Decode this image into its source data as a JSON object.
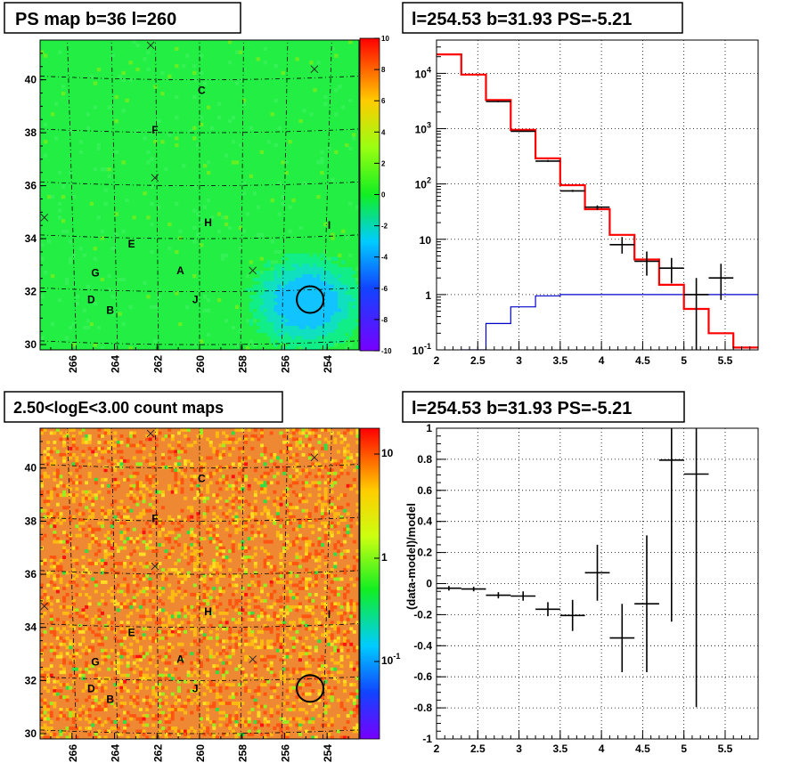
{
  "titles": {
    "tl": "PS map b=36 l=260",
    "tr": "l=254.53 b=31.93 PS=-5.21",
    "bl": "2.50<logE<3.00 count maps",
    "br": "l=254.53 b=31.93 PS=-5.21"
  },
  "source_letters": [
    "A",
    "B",
    "C",
    "D",
    "E",
    "F",
    "G",
    "H",
    "I",
    "J"
  ],
  "colors": {
    "model_red": "#ff0000",
    "data_black": "#000000",
    "baseline_blue": "#0000cc",
    "ps_background": "#22ee44",
    "count_background": "#ee8833"
  },
  "chart_data": [
    {
      "id": "ps_map",
      "type": "heatmap",
      "title": "PS map b=36 l=260",
      "x_ticks": [
        "266",
        "264",
        "262",
        "260",
        "258",
        "256",
        "254"
      ],
      "y_ticks": [
        "30",
        "32",
        "34",
        "36",
        "38",
        "40"
      ],
      "xlim": [
        267.5,
        252.5
      ],
      "ylim": [
        29.8,
        41.5
      ],
      "colorbar_ticks": [
        "10",
        "8",
        "6",
        "4",
        "2",
        "0",
        "-2",
        "-4",
        "-6",
        "-8",
        "-10"
      ],
      "colorbar_range": [
        -10,
        10
      ],
      "sources": [
        {
          "label": "A",
          "l": 260.9,
          "b": 32.8
        },
        {
          "label": "B",
          "l": 264.2,
          "b": 31.3
        },
        {
          "label": "C",
          "l": 259.9,
          "b": 39.6
        },
        {
          "label": "D",
          "l": 265.1,
          "b": 31.7
        },
        {
          "label": "E",
          "l": 263.2,
          "b": 33.8
        },
        {
          "label": "F",
          "l": 262.1,
          "b": 38.1
        },
        {
          "label": "G",
          "l": 264.9,
          "b": 32.7
        },
        {
          "label": "H",
          "l": 259.6,
          "b": 34.6
        },
        {
          "label": "I",
          "l": 253.9,
          "b": 34.5
        },
        {
          "label": "J",
          "l": 260.2,
          "b": 31.7
        }
      ],
      "crosses": [
        {
          "l": 262.3,
          "b": 41.3
        },
        {
          "l": 254.6,
          "b": 40.4
        },
        {
          "l": 262.1,
          "b": 36.3
        },
        {
          "l": 267.3,
          "b": 34.8
        },
        {
          "l": 257.5,
          "b": 32.8
        }
      ],
      "circle": {
        "l": 254.8,
        "b": 31.7
      }
    },
    {
      "id": "spectrum",
      "type": "line",
      "title": "l=254.53 b=31.93 PS=-5.21",
      "log_y": true,
      "xlim": [
        2,
        5.9
      ],
      "ylim": [
        0.1,
        40000
      ],
      "x_ticks": [
        "2",
        "2.5",
        "3",
        "3.5",
        "4",
        "4.5",
        "5",
        "5.5"
      ],
      "y_ticks": [
        "10^-1",
        "1",
        "10",
        "10^2",
        "10^3",
        "10^4"
      ],
      "grid": true,
      "series": [
        {
          "style": "model_step",
          "edges": [
            2.0,
            2.3,
            2.6,
            2.9,
            3.2,
            3.5,
            3.8,
            4.1,
            4.4,
            4.7,
            5.0,
            5.3,
            5.6,
            5.9
          ],
          "values": [
            22000,
            9500,
            3300,
            950,
            290,
            95,
            35,
            12,
            4.3,
            1.5,
            0.55,
            0.2,
            0.11
          ]
        },
        {
          "style": "baseline_step",
          "edges": [
            2.3,
            2.6,
            2.9,
            3.2,
            3.5,
            5.9
          ],
          "values": [
            0.1,
            0.3,
            0.6,
            0.95,
            1.0
          ]
        },
        {
          "style": "data_points",
          "x": [
            2.6,
            2.9,
            3.2,
            3.5,
            3.8,
            4.1,
            4.4,
            4.7,
            5.0,
            5.3
          ],
          "y": [
            3100,
            900,
            260,
            75,
            38,
            8,
            4,
            3,
            1,
            2
          ],
          "ylo": [
            3000,
            880,
            250,
            72,
            34,
            5.5,
            2.2,
            1.6,
            0.1,
            0.8
          ],
          "yhi": [
            3200,
            920,
            270,
            78,
            41,
            11,
            6,
            4.6,
            2,
            3.6
          ]
        }
      ]
    },
    {
      "id": "count_map",
      "type": "heatmap",
      "title": "2.50<logE<3.00 count maps",
      "x_ticks": [
        "266",
        "264",
        "262",
        "260",
        "258",
        "256",
        "254"
      ],
      "y_ticks": [
        "30",
        "32",
        "34",
        "36",
        "38",
        "40"
      ],
      "xlim": [
        267.5,
        252.5
      ],
      "ylim": [
        29.8,
        41.5
      ],
      "colorbar_ticks": [
        "10",
        "1",
        "10^-1"
      ],
      "log_colorbar": true
    },
    {
      "id": "residuals",
      "type": "scatter",
      "title": "l=254.53 b=31.93 PS=-5.21",
      "ylabel": "(data-model)/model",
      "xlim": [
        2,
        5.9
      ],
      "ylim": [
        -1,
        1
      ],
      "x_ticks": [
        "2",
        "2.5",
        "3",
        "3.5",
        "4",
        "4.5",
        "5",
        "5.5"
      ],
      "y_ticks": [
        "-1",
        "-0.8",
        "-0.6",
        "-0.4",
        "-0.2",
        "0",
        "0.2",
        "0.4",
        "0.6",
        "0.8",
        "1"
      ],
      "grid": true,
      "points": {
        "x": [
          2.15,
          2.45,
          2.75,
          3.05,
          3.35,
          3.65,
          3.95,
          4.25,
          4.55,
          4.85,
          5.15
        ],
        "y": [
          -0.03,
          -0.035,
          -0.075,
          -0.08,
          -0.165,
          -0.205,
          0.07,
          -0.35,
          -0.13,
          0.795,
          0.705
        ],
        "err": [
          0.015,
          0.015,
          0.02,
          0.03,
          0.045,
          0.1,
          0.18,
          0.22,
          0.44,
          1.04,
          1.5
        ],
        "xerr": 0.15
      }
    }
  ]
}
